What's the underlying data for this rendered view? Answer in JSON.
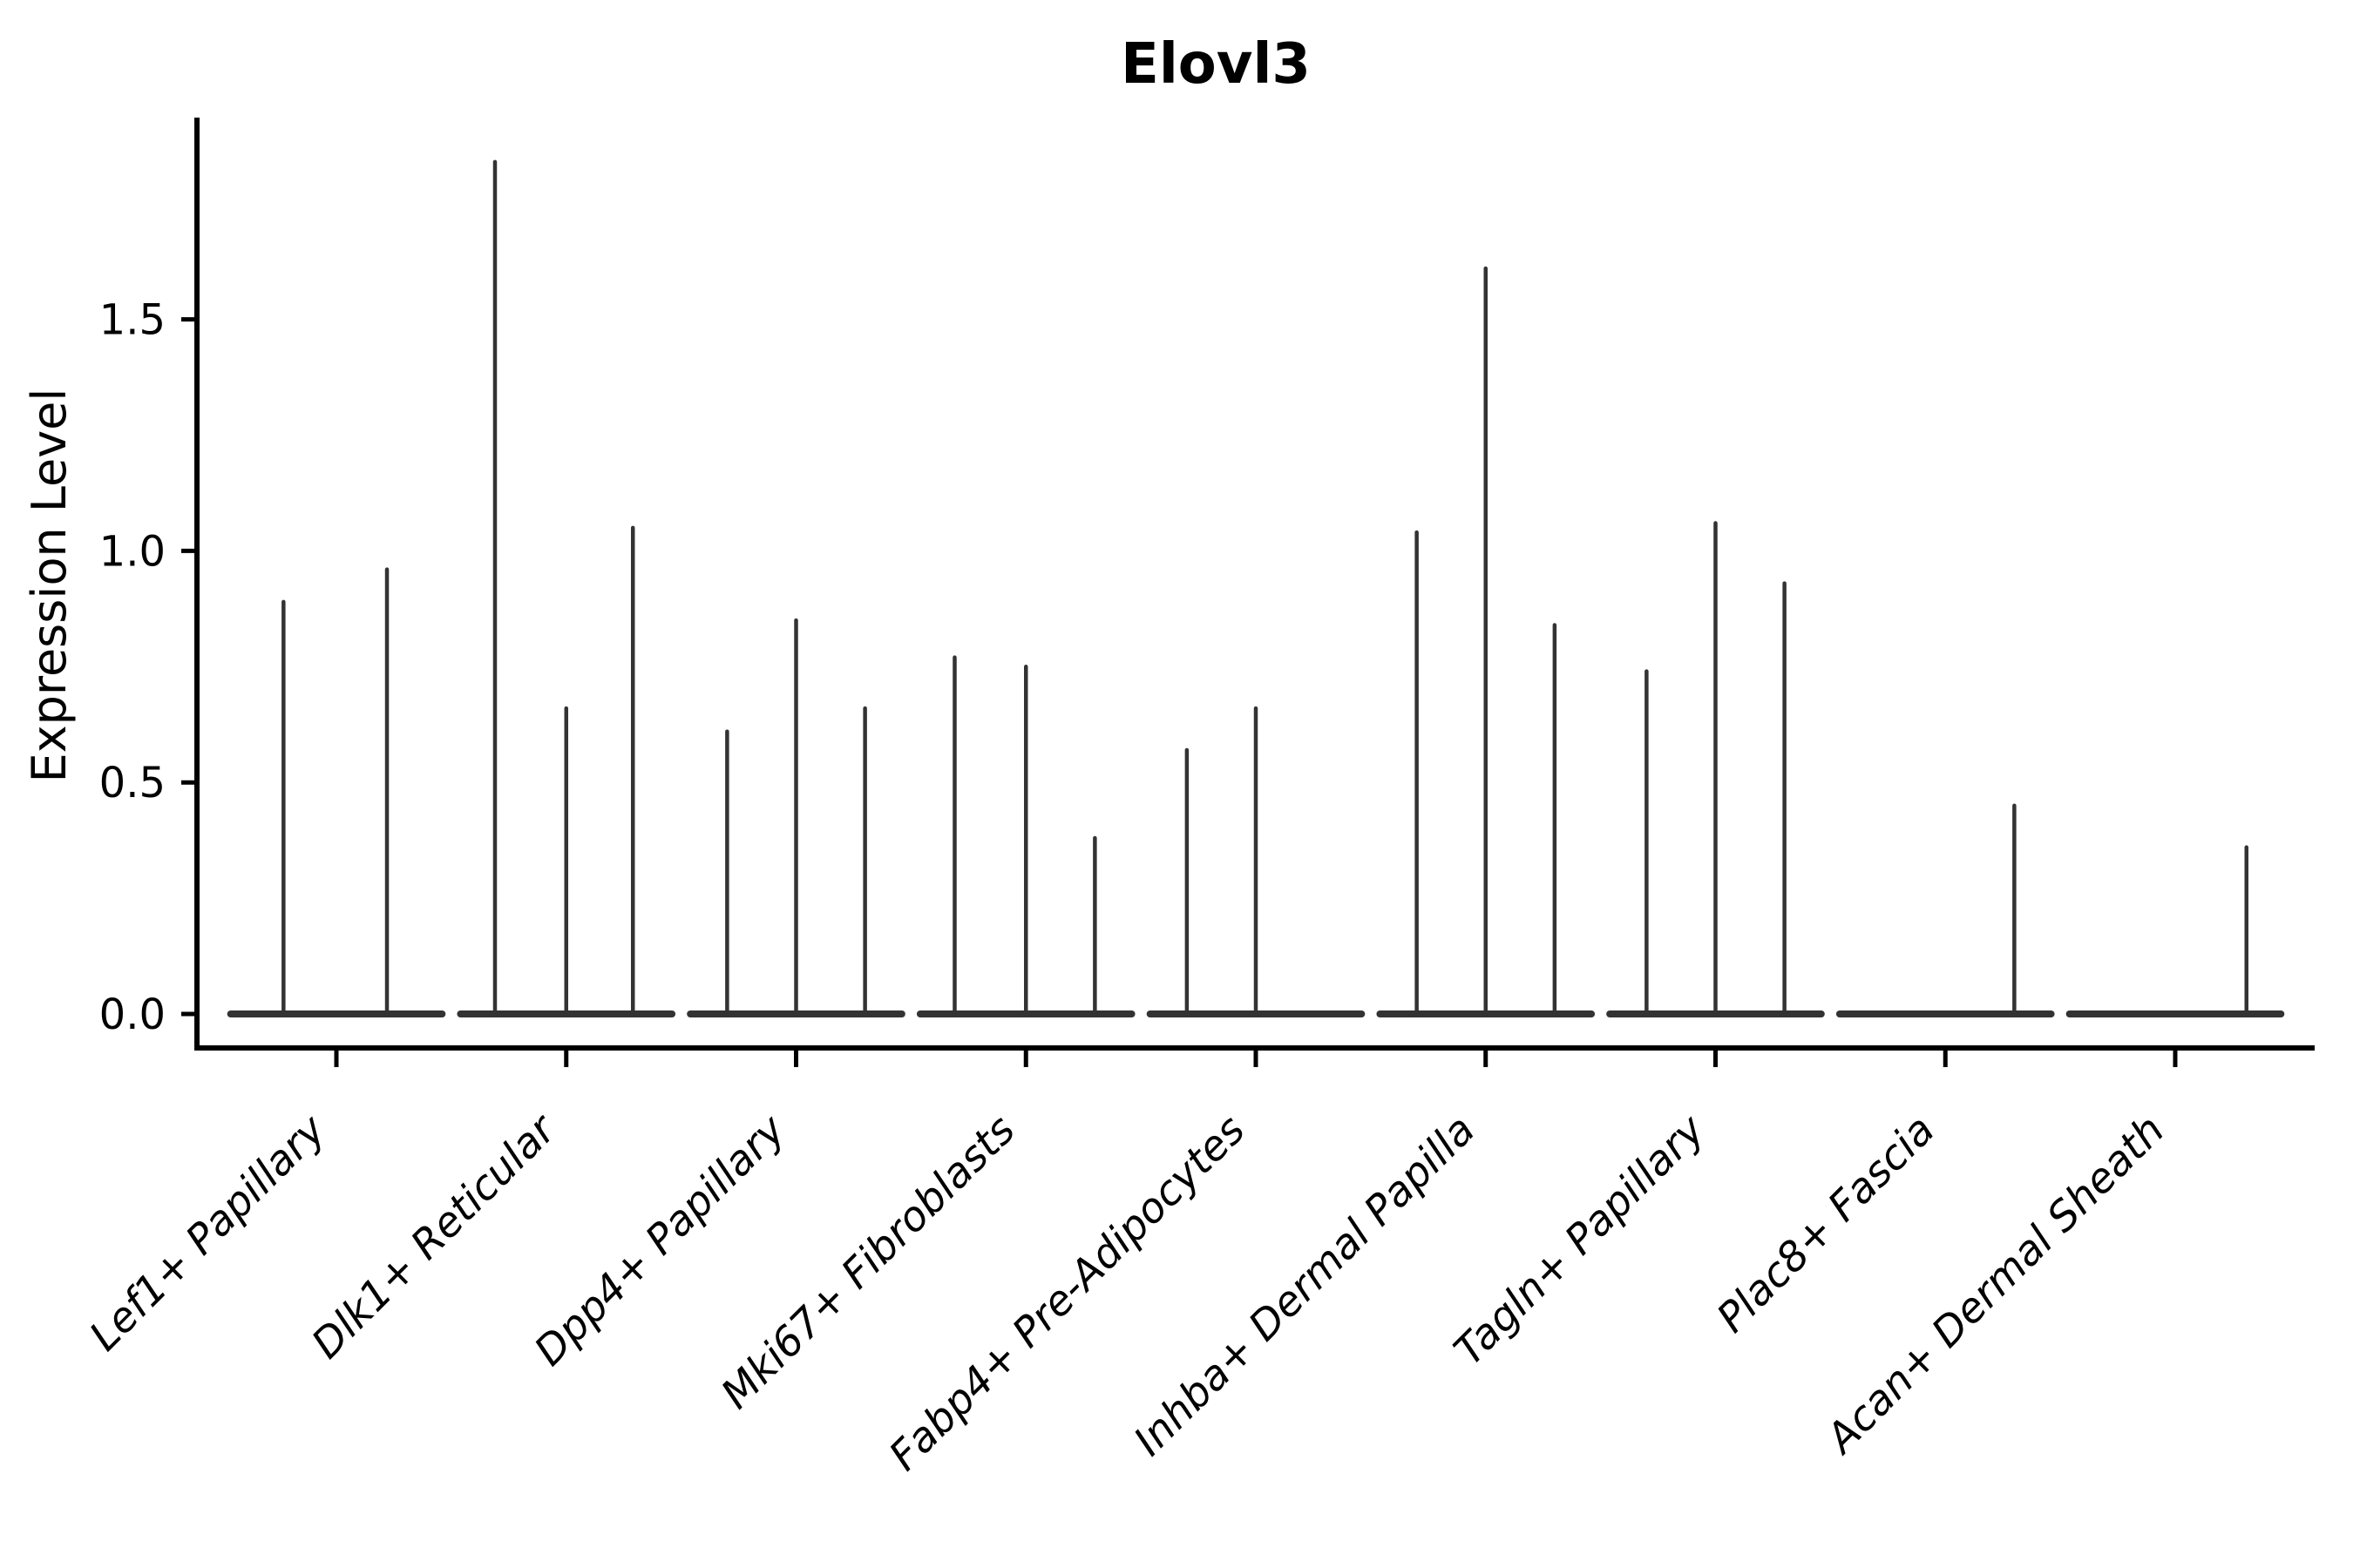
{
  "chart_data": {
    "type": "violin",
    "title": "Elovl3",
    "ylabel": "Expression Level",
    "xlabel": "",
    "grid": false,
    "legend": "none",
    "ylim": [
      -0.07,
      1.94
    ],
    "yticks": [
      {
        "label": "0.0",
        "value": 0.0
      },
      {
        "label": "0.5",
        "value": 0.5
      },
      {
        "label": "1.0",
        "value": 1.0
      },
      {
        "label": "1.5",
        "value": 1.5
      }
    ],
    "violin_color": "#333333",
    "axis_color": "#000000",
    "categories": [
      "Lef1+ Papillary",
      "Dlk1+ Reticular",
      "Dpp4+ Papillary",
      "Mki67+ Fibroblasts",
      "Fabp4+ Pre-Adipocytes",
      "Inhba+ Dermal Papilla",
      "Tagln+ Papillary",
      "Plac8+ Fascia",
      "Acan+ Dermal Sheath"
    ],
    "baseline_halfwidth": 0.46,
    "groups": [
      {
        "category": "Lef1+ Papillary",
        "violins": [
          {
            "pos": -0.23,
            "max": 0.89
          },
          {
            "pos": 0.22,
            "max": 0.96
          }
        ]
      },
      {
        "category": "Dlk1+ Reticular",
        "violins": [
          {
            "pos": -0.31,
            "max": 1.84
          },
          {
            "pos": 0.0,
            "max": 0.66
          },
          {
            "pos": 0.29,
            "max": 1.05
          }
        ]
      },
      {
        "category": "Dpp4+ Papillary",
        "violins": [
          {
            "pos": -0.3,
            "max": 0.61
          },
          {
            "pos": 0.0,
            "max": 0.85
          },
          {
            "pos": 0.3,
            "max": 0.66
          }
        ]
      },
      {
        "category": "Mki67+ Fibroblasts",
        "violins": [
          {
            "pos": -0.31,
            "max": 0.77
          },
          {
            "pos": 0.0,
            "max": 0.75
          },
          {
            "pos": 0.3,
            "max": 0.38
          }
        ]
      },
      {
        "category": "Fabp4+ Pre-Adipocytes",
        "violins": [
          {
            "pos": -0.3,
            "max": 0.57
          },
          {
            "pos": 0.0,
            "max": 0.66
          },
          {
            "pos": 0.3,
            "max": 0.0
          }
        ]
      },
      {
        "category": "Inhba+ Dermal Papilla",
        "violins": [
          {
            "pos": -0.3,
            "max": 1.04
          },
          {
            "pos": 0.0,
            "max": 1.61
          },
          {
            "pos": 0.3,
            "max": 0.84
          }
        ]
      },
      {
        "category": "Tagln+ Papillary",
        "violins": [
          {
            "pos": -0.3,
            "max": 0.74
          },
          {
            "pos": 0.0,
            "max": 1.06
          },
          {
            "pos": 0.3,
            "max": 0.93
          }
        ]
      },
      {
        "category": "Plac8+ Fascia",
        "violins": [
          {
            "pos": -0.3,
            "max": 0.0
          },
          {
            "pos": 0.0,
            "max": 0.0
          },
          {
            "pos": 0.3,
            "max": 0.45
          }
        ]
      },
      {
        "category": "Acan+ Dermal Sheath",
        "violins": [
          {
            "pos": -0.3,
            "max": 0.0
          },
          {
            "pos": 0.0,
            "max": 0.0
          },
          {
            "pos": 0.31,
            "max": 0.36
          }
        ]
      }
    ]
  }
}
